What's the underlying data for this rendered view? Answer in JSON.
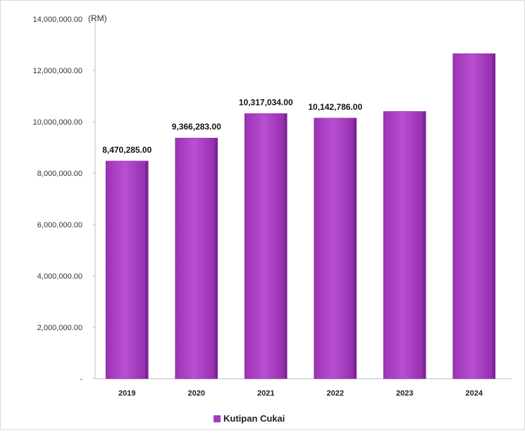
{
  "chart_data": {
    "type": "bar",
    "unit_label": "(RM)",
    "categories": [
      "2019",
      "2020",
      "2021",
      "2022",
      "2023",
      "2024"
    ],
    "series": [
      {
        "name": "Kutipan Cukai",
        "values": [
          8470285.0,
          9366283.0,
          10317034.0,
          10142786.0,
          10400000.0,
          12650000.0
        ],
        "data_labels": [
          "8,470,285.00",
          "9,366,283.00",
          "10,317,034.00",
          "10,142,786.00",
          "",
          ""
        ],
        "color": "#a23bbd"
      }
    ],
    "y_ticks": [
      0,
      2000000,
      4000000,
      6000000,
      8000000,
      10000000,
      12000000,
      14000000
    ],
    "y_tick_labels": [
      "-",
      "2,000,000.00",
      "4,000,000.00",
      "6,000,000.00",
      "8,000,000.00",
      "10,000,000.00",
      "12,000,000.00",
      "14,000,000.00"
    ],
    "ylim": [
      0,
      14000000
    ],
    "grid": false,
    "legend_position": "bottom"
  }
}
